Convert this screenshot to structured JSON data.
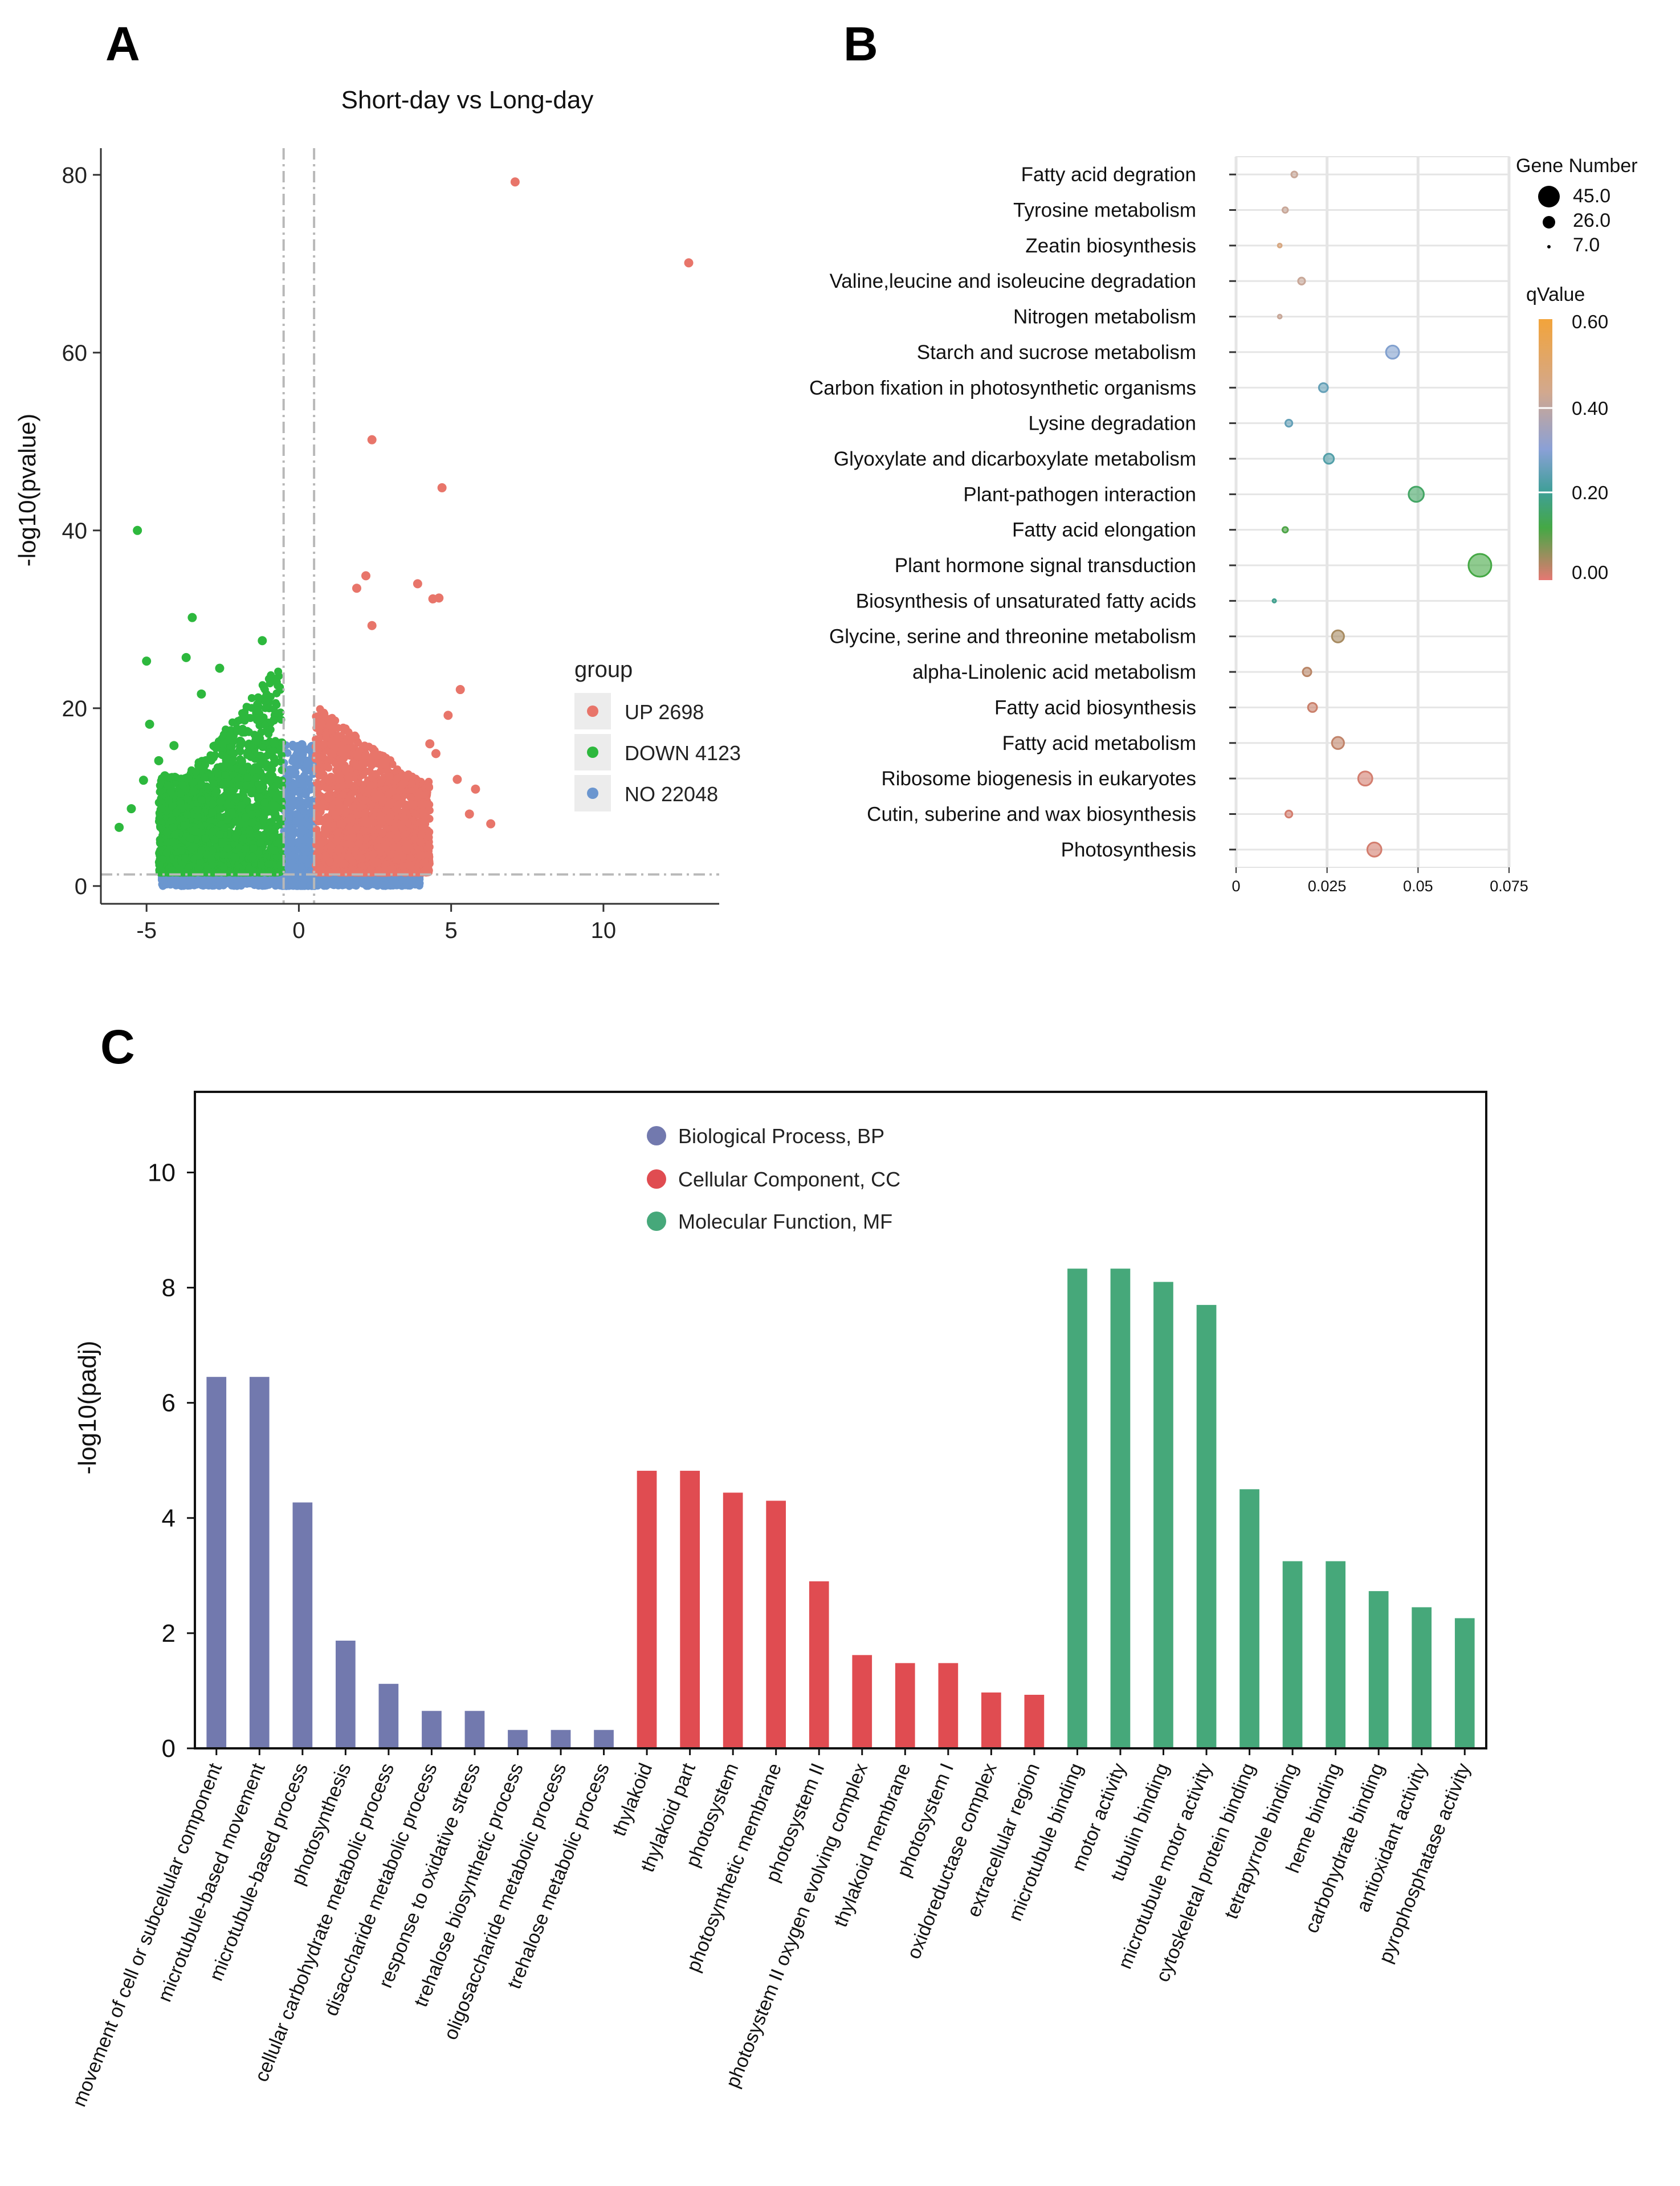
{
  "panels": {
    "a": "A",
    "b": "B",
    "c": "C"
  },
  "colors": {
    "up": "#e8756a",
    "down": "#2db83d",
    "no": "#6b96cf",
    "bp": "#7279ae",
    "cc": "#e04c51",
    "mf": "#46a87a",
    "grid": "#e5e5e5",
    "guide": "#b8b8b8"
  },
  "chart_data": [
    {
      "panel": "A",
      "type": "scatter",
      "title": "Short-day vs Long-day",
      "xlabel": "",
      "ylabel": "-log10(pvalue)",
      "xlim": [
        -6.5,
        13.8
      ],
      "ylim": [
        -2,
        83
      ],
      "xticks": [
        -5,
        0,
        5,
        10
      ],
      "yticks": [
        0,
        20,
        40,
        60,
        80
      ],
      "thresholds": {
        "fold_change_x": [
          -0.5,
          0.5
        ],
        "pvalue_y": 1.3
      },
      "legend": {
        "title": "group",
        "position": "right",
        "entries": [
          {
            "name": "UP 2698",
            "group": "up"
          },
          {
            "name": "DOWN 4123",
            "group": "down"
          },
          {
            "name": "NO 22048",
            "group": "no"
          }
        ]
      },
      "series": [
        {
          "name": "UP",
          "counts": 2698,
          "points": [
            [
              7.1,
              79.2
            ],
            [
              12.8,
              70.1
            ],
            [
              2.4,
              50.2
            ],
            [
              4.7,
              44.8
            ],
            [
              3.9,
              34.0
            ],
            [
              4.4,
              32.3
            ],
            [
              4.6,
              32.4
            ],
            [
              2.2,
              34.9
            ],
            [
              1.9,
              33.5
            ],
            [
              2.4,
              29.3
            ],
            [
              5.3,
              22.1
            ],
            [
              4.9,
              19.2
            ],
            [
              5.8,
              10.9
            ],
            [
              6.3,
              7.0
            ],
            [
              5.2,
              12.0
            ],
            [
              5.6,
              8.1
            ],
            [
              4.5,
              14.9
            ],
            [
              4.3,
              16.0
            ]
          ]
        },
        {
          "name": "DOWN",
          "counts": 4123,
          "points": [
            [
              -5.3,
              40.0
            ],
            [
              -3.5,
              30.2
            ],
            [
              -5.0,
              25.3
            ],
            [
              -1.2,
              27.6
            ],
            [
              -3.7,
              25.7
            ],
            [
              -2.6,
              24.5
            ],
            [
              -3.2,
              21.6
            ],
            [
              -4.9,
              18.2
            ],
            [
              -5.5,
              8.7
            ],
            [
              -5.9,
              6.6
            ],
            [
              -4.6,
              14.1
            ],
            [
              -4.1,
              15.8
            ],
            [
              -5.1,
              11.9
            ],
            [
              -4.4,
              12.4
            ]
          ]
        },
        {
          "name": "NO",
          "counts": 22048,
          "points": [
            [
              0.1,
              15.9
            ],
            [
              0.3,
              13.7
            ]
          ]
        }
      ]
    },
    {
      "panel": "B",
      "type": "scatter",
      "title": "",
      "xlabel": "",
      "ylabel": "",
      "xlim": [
        0,
        0.075
      ],
      "xticks": [
        0,
        0.025,
        0.05,
        0.075
      ],
      "xtick_labels": [
        "0",
        "0.025",
        "0.05",
        "0.075"
      ],
      "size_legend": {
        "title": "Gene Number",
        "values": [
          45.0,
          26.0,
          7.0
        ],
        "labels": [
          "45.0",
          "26.0",
          "7.0"
        ]
      },
      "color_legend": {
        "title": "qValue",
        "ticks": [
          0.6,
          0.4,
          0.2,
          0.0
        ],
        "tick_labels": [
          "0.60",
          "0.40",
          "0.20",
          "0.00"
        ]
      },
      "categories": [
        "Fatty acid degration",
        "Tyrosine metabolism",
        "Zeatin biosynthesis",
        "Valine,leucine and isoleucine degradation",
        "Nitrogen metabolism",
        "Starch and sucrose metabolism",
        "Carbon fixation in photosynthetic organisms",
        "Lysine degradation",
        "Glyoxylate and dicarboxylate metabolism",
        "Plant-pathogen interaction",
        "Fatty acid elongation",
        "Plant hormone signal transduction",
        "Biosynthesis of unsaturated fatty acids",
        "Glycine, serine and threonine metabolism",
        "alpha-Linolenic acid metabolism",
        "Fatty acid biosynthesis",
        "Fatty acid metabolism",
        "Ribosome biogenesis in eukaryotes",
        "Cutin, suberine and wax biosynthesis",
        "Photosynthesis"
      ],
      "x": [
        0.016,
        0.0135,
        0.012,
        0.018,
        0.012,
        0.043,
        0.024,
        0.0145,
        0.0255,
        0.0495,
        0.0135,
        0.067,
        0.0105,
        0.028,
        0.0195,
        0.021,
        0.028,
        0.0355,
        0.0145,
        0.038
      ],
      "gene_number": [
        12,
        11,
        8,
        14,
        8,
        26,
        18,
        14,
        20,
        30,
        11,
        45,
        7,
        24,
        17,
        18,
        24,
        28,
        14,
        28
      ],
      "qvalue": [
        0.46,
        0.46,
        0.5,
        0.46,
        0.46,
        0.33,
        0.3,
        0.3,
        0.28,
        0.21,
        0.17,
        0.18,
        0.25,
        0.07,
        0.05,
        0.03,
        0.04,
        0.02,
        0.02,
        0.02
      ]
    },
    {
      "panel": "C",
      "type": "bar",
      "title": "",
      "xlabel": "",
      "ylabel": "-log10(padj)",
      "ylim": [
        0,
        11.4
      ],
      "yticks": [
        0,
        2,
        4,
        6,
        8,
        10
      ],
      "legend": {
        "position": "top-center",
        "entries": [
          {
            "name": "Biological Process, BP",
            "group": "bp"
          },
          {
            "name": "Cellular Component, CC",
            "group": "cc"
          },
          {
            "name": "Molecular Function, MF",
            "group": "mf"
          }
        ]
      },
      "categories": [
        "movement of cell or subcellular component",
        "microtubule-based movement",
        "microtubule-based process",
        "photosynthesis",
        "cellular carbohydrate metabolic process",
        "disaccharide metabolic process",
        "response to oxidative stress",
        "trehalose biosynthetic process",
        "oligosaccharide metabolic process",
        "trehalose metabolic process",
        "thylakoid",
        "thylakoid part",
        "photosystem",
        "photosynthetic membrane",
        "photosystem II",
        "photosystem II oxygen evolving complex",
        "thylakoid membrane",
        "photosystem I",
        "oxidoreductase complex",
        "extracellular region",
        "microtubule binding",
        "motor activity",
        "tubulin binding",
        "microtubule motor activity",
        "cytoskeletal protein binding",
        "tetrapyrrole binding",
        "heme binding",
        "carbohydrate binding",
        "antioxidant activity",
        "pyrophosphatase activity"
      ],
      "groups": [
        "bp",
        "bp",
        "bp",
        "bp",
        "bp",
        "bp",
        "bp",
        "bp",
        "bp",
        "bp",
        "cc",
        "cc",
        "cc",
        "cc",
        "cc",
        "cc",
        "cc",
        "cc",
        "cc",
        "cc",
        "mf",
        "mf",
        "mf",
        "mf",
        "mf",
        "mf",
        "mf",
        "mf",
        "mf",
        "mf"
      ],
      "values": [
        6.45,
        6.45,
        4.27,
        1.87,
        1.12,
        0.65,
        0.65,
        0.32,
        0.32,
        0.32,
        4.82,
        4.82,
        4.44,
        4.3,
        2.9,
        1.62,
        1.48,
        1.48,
        0.97,
        0.93,
        8.33,
        8.33,
        8.1,
        7.7,
        4.5,
        3.25,
        3.25,
        2.73,
        2.45,
        2.26
      ]
    }
  ]
}
